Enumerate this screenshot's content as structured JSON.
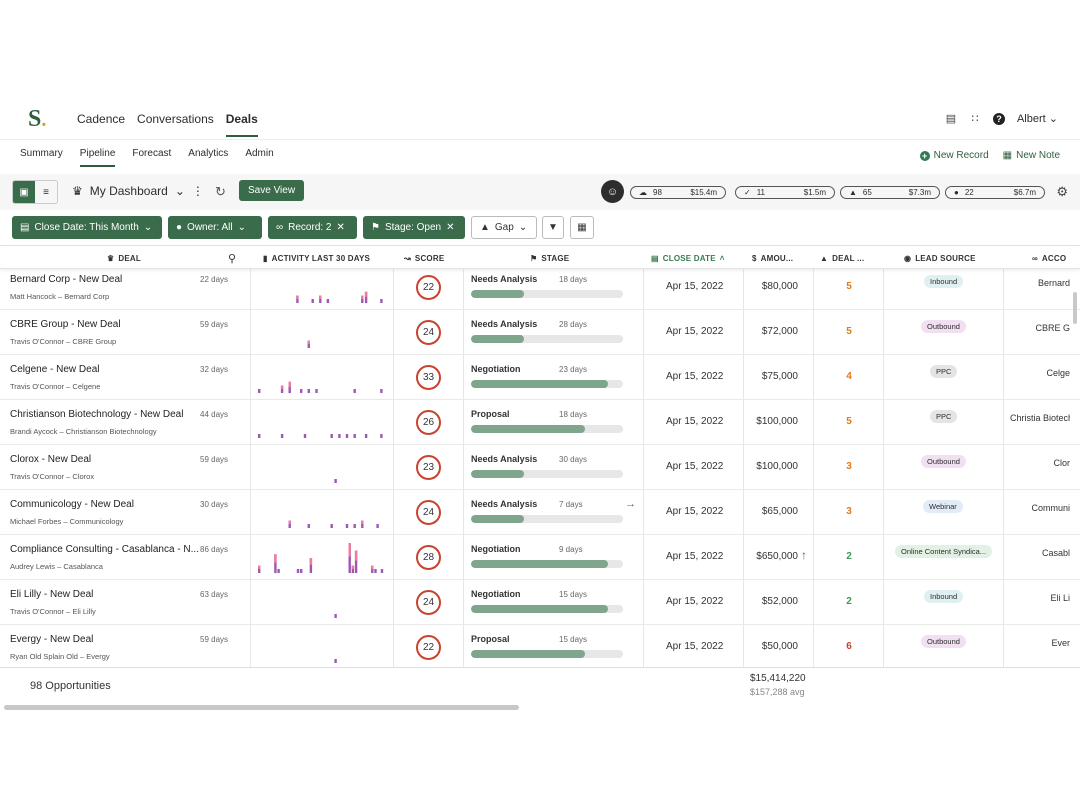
{
  "app": {
    "logo": "S",
    "nav": [
      "Cadence",
      "Conversations",
      "Deals"
    ],
    "active_nav": "Deals",
    "user": "Albert",
    "icons": [
      "chat-icon",
      "apps-grid-icon",
      "help-icon"
    ]
  },
  "subnav": {
    "items": [
      "Summary",
      "Pipeline",
      "Forecast",
      "Analytics",
      "Admin"
    ],
    "active": "Pipeline",
    "new_record": "New Record",
    "new_note": "New Note"
  },
  "toolbar": {
    "dashboard": "My Dashboard",
    "save_view": "Save View",
    "pills": [
      {
        "icon": "cloud-icon",
        "count": "98",
        "amount": "$15.4m",
        "color": "#ffffff",
        "border": "#555555"
      },
      {
        "icon": "check-icon",
        "count": "11",
        "amount": "$1.5m",
        "color": "#e3f1e6",
        "border": "#3a6b4b"
      },
      {
        "icon": "warning-icon",
        "count": "65",
        "amount": "$7.3m",
        "color": "#fbf3d5",
        "border": "#8a7a2a"
      },
      {
        "icon": "alert-icon",
        "count": "22",
        "amount": "$6.7m",
        "color": "#f8d6d3",
        "border": "#c9422e"
      }
    ]
  },
  "filters": {
    "close_date": "Close Date: This Month",
    "owner": "Owner: All",
    "record": "Record: 2",
    "stage": "Stage: Open",
    "gap": "Gap"
  },
  "columns": {
    "deal": "Deal",
    "activity": "Activity Last 30 Days",
    "score": "Score",
    "stage": "Stage",
    "close_date": "Close Date",
    "amount": "Amou...",
    "deal_age": "Deal ...",
    "lead_source": "Lead Source",
    "account": "Acco"
  },
  "rows": [
    {
      "deal": "Bernard Corp - New Deal",
      "sub": "Matt Hancock – Bernard Corp",
      "days": "22 days",
      "activity": [
        0,
        0,
        0,
        0,
        0,
        0,
        0,
        0,
        0,
        0,
        2,
        0,
        0,
        0,
        1,
        0,
        2,
        0,
        1,
        0,
        0,
        0,
        0,
        0,
        0,
        0,
        0,
        2,
        3,
        0,
        0,
        0,
        1
      ],
      "score": "22",
      "stage": "Needs Analysis",
      "stage_days": "18 days",
      "progress": 0.35,
      "close": "Apr 15, 2022",
      "amount": "$80,000",
      "age": "5",
      "age_color": "#e07b1a",
      "source": "Inbound",
      "account": "Bernard"
    },
    {
      "deal": "CBRE Group - New Deal",
      "sub": "Travis O'Connor – CBRE Group",
      "days": "59 days",
      "activity": [
        0,
        0,
        0,
        0,
        0,
        0,
        0,
        0,
        0,
        0,
        0,
        0,
        0,
        2,
        0,
        0,
        0,
        0,
        0,
        0,
        0,
        0,
        0,
        0,
        0,
        0,
        0,
        0,
        0,
        0,
        0,
        0,
        0
      ],
      "score": "24",
      "stage": "Needs Analysis",
      "stage_days": "28 days",
      "progress": 0.35,
      "close": "Apr 15, 2022",
      "amount": "$72,000",
      "age": "5",
      "age_color": "#e07b1a",
      "source": "Outbound",
      "account": "CBRE G"
    },
    {
      "deal": "Celgene - New Deal",
      "sub": "Travis O'Connor – Celgene",
      "days": "32 days",
      "activity": [
        1,
        0,
        0,
        0,
        0,
        0,
        2,
        0,
        3,
        0,
        0,
        1,
        0,
        1,
        0,
        1,
        0,
        0,
        0,
        0,
        0,
        0,
        0,
        0,
        0,
        1,
        0,
        0,
        0,
        0,
        0,
        0,
        1
      ],
      "score": "33",
      "stage": "Negotiation",
      "stage_days": "23 days",
      "progress": 0.9,
      "close": "Apr 15, 2022",
      "amount": "$75,000",
      "age": "4",
      "age_color": "#e07b1a",
      "source": "PPC",
      "account": "Celge"
    },
    {
      "deal": "Christianson Biotechnology - New Deal",
      "sub": "Brandi Aycock – Christianson Biotechnology",
      "days": "44 days",
      "activity": [
        1,
        0,
        0,
        0,
        0,
        0,
        1,
        0,
        0,
        0,
        0,
        0,
        1,
        0,
        0,
        0,
        0,
        0,
        0,
        1,
        0,
        1,
        0,
        1,
        0,
        1,
        0,
        0,
        1,
        0,
        0,
        0,
        1
      ],
      "score": "26",
      "stage": "Proposal",
      "stage_days": "18 days",
      "progress": 0.75,
      "close": "Apr 15, 2022",
      "amount": "$100,000",
      "age": "5",
      "age_color": "#e07b1a",
      "source": "PPC",
      "account": "Christia Biotechn"
    },
    {
      "deal": "Clorox - New Deal",
      "sub": "Travis O'Connor – Clorox",
      "days": "59 days",
      "activity": [
        0,
        0,
        0,
        0,
        0,
        0,
        0,
        0,
        0,
        0,
        0,
        0,
        0,
        0,
        0,
        0,
        0,
        0,
        0,
        0,
        1,
        0,
        0,
        0,
        0,
        0,
        0,
        0,
        0,
        0,
        0,
        0,
        0
      ],
      "score": "23",
      "stage": "Needs Analysis",
      "stage_days": "30 days",
      "progress": 0.35,
      "close": "Apr 15, 2022",
      "amount": "$100,000",
      "age": "3",
      "age_color": "#e07b1a",
      "source": "Outbound",
      "account": "Clor"
    },
    {
      "deal": "Communicology - New Deal",
      "sub": "Michael Forbes – Communicology",
      "days": "30 days",
      "activity": [
        0,
        0,
        0,
        0,
        0,
        0,
        0,
        0,
        2,
        0,
        0,
        0,
        0,
        1,
        0,
        0,
        0,
        0,
        0,
        1,
        0,
        0,
        0,
        1,
        0,
        1,
        0,
        2,
        0,
        0,
        0,
        1,
        0
      ],
      "score": "24",
      "stage": "Needs Analysis",
      "stage_days": "7 days",
      "progress": 0.35,
      "close": "Apr 15, 2022",
      "amount": "$65,000",
      "age": "3",
      "age_color": "#e07b1a",
      "source": "Webinar",
      "account": "Communi"
    },
    {
      "deal": "Compliance Consulting - Casablanca - N...",
      "sub": "Audrey Lewis – Casablanca",
      "days": "86 days",
      "activity": [
        2,
        0,
        0,
        0,
        0,
        5,
        1,
        0,
        0,
        0,
        0,
        0,
        1,
        1,
        0,
        0,
        4,
        0,
        0,
        0,
        0,
        0,
        0,
        0,
        0,
        0,
        0,
        0,
        8,
        2,
        6,
        0,
        0,
        0,
        0,
        2,
        1,
        0,
        1
      ],
      "score": "28",
      "stage": "Negotiation",
      "stage_days": "9 days",
      "progress": 0.9,
      "close": "Apr 15, 2022",
      "amount": "$650,000",
      "age": "2",
      "age_color": "#3a9a57",
      "source": "Online Content Syndica...",
      "account": "Casabl"
    },
    {
      "deal": "Eli Lilly - New Deal",
      "sub": "Travis O'Connor – Eli Lilly",
      "days": "63 days",
      "activity": [
        0,
        0,
        0,
        0,
        0,
        0,
        0,
        0,
        0,
        0,
        0,
        0,
        0,
        0,
        0,
        0,
        0,
        0,
        0,
        0,
        1,
        0,
        0,
        0,
        0,
        0,
        0,
        0,
        0,
        0,
        0,
        0,
        0
      ],
      "score": "24",
      "stage": "Negotiation",
      "stage_days": "15 days",
      "progress": 0.9,
      "close": "Apr 15, 2022",
      "amount": "$52,000",
      "age": "2",
      "age_color": "#3a9a57",
      "source": "Inbound",
      "account": "Eli Li"
    },
    {
      "deal": "Evergy - New Deal",
      "sub": "Ryan Old Splain Old – Evergy",
      "days": "59 days",
      "activity": [
        0,
        0,
        0,
        0,
        0,
        0,
        0,
        0,
        0,
        0,
        0,
        0,
        0,
        0,
        0,
        0,
        0,
        0,
        0,
        0,
        1,
        0,
        0,
        0,
        0,
        0,
        0,
        0,
        0,
        0,
        0,
        0,
        0
      ],
      "score": "22",
      "stage": "Proposal",
      "stage_days": "15 days",
      "progress": 0.75,
      "close": "Apr 15, 2022",
      "amount": "$50,000",
      "age": "6",
      "age_color": "#c9422e",
      "source": "Outbound",
      "account": "Ever"
    }
  ],
  "source_colors": {
    "Inbound": "#dff0f2",
    "Outbound": "#f1e0f2",
    "PPC": "#e4e4e4",
    "Webinar": "#e1ecf7",
    "Online Content Syndica...": "#e1f1e4"
  },
  "footer": {
    "count": "98 Opportunities",
    "total": "$15,414,220",
    "avg": "$157,288 avg"
  }
}
